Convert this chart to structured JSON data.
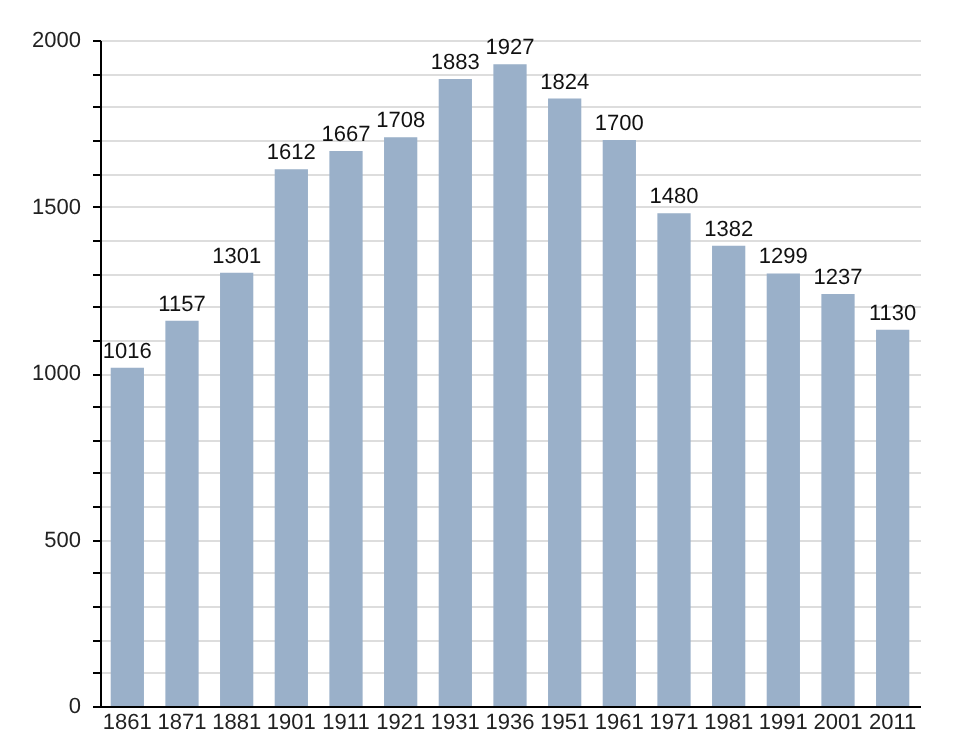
{
  "chart_data": {
    "type": "bar",
    "categories": [
      "1861",
      "1871",
      "1881",
      "1901",
      "1911",
      "1921",
      "1931",
      "1936",
      "1951",
      "1961",
      "1971",
      "1981",
      "1991",
      "2001",
      "2011"
    ],
    "values": [
      1016,
      1157,
      1301,
      1612,
      1667,
      1708,
      1883,
      1927,
      1824,
      1700,
      1480,
      1382,
      1299,
      1237,
      1130
    ],
    "color": "#9ab0c9",
    "ylim": [
      0,
      2000
    ],
    "yticks": [
      0,
      {
        "value": 100,
        "label": null
      },
      {
        "value": 200,
        "label": null
      },
      {
        "value": 300,
        "label": null
      },
      {
        "value": 400,
        "label": null
      },
      500,
      {
        "value": 600,
        "label": null
      },
      {
        "value": 700,
        "label": null
      },
      {
        "value": 800,
        "label": null
      },
      {
        "value": 900,
        "label": null
      },
      1000,
      {
        "value": 1100,
        "label": null
      },
      {
        "value": 1200,
        "label": null
      },
      {
        "value": 1300,
        "label": null
      },
      {
        "value": 1400,
        "label": null
      },
      1500,
      {
        "value": 1600,
        "label": null
      },
      {
        "value": 1700,
        "label": null
      },
      {
        "value": 1800,
        "label": null
      },
      {
        "value": 1900,
        "label": null
      },
      2000
    ],
    "grid": "y",
    "data_labels": true
  }
}
